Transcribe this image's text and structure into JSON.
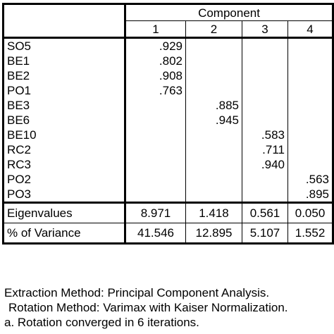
{
  "table": {
    "component_header": "Component",
    "component_numbers": [
      "1",
      "2",
      "3",
      "4"
    ],
    "rows": [
      {
        "label": "SO5",
        "values": [
          ".929",
          "",
          "",
          ""
        ]
      },
      {
        "label": "BE1",
        "values": [
          ".802",
          "",
          "",
          ""
        ]
      },
      {
        "label": "BE2",
        "values": [
          ".908",
          "",
          "",
          ""
        ]
      },
      {
        "label": "PO1",
        "values": [
          ".763",
          "",
          "",
          ""
        ]
      },
      {
        "label": "BE3",
        "values": [
          "",
          ".885",
          "",
          ""
        ]
      },
      {
        "label": "BE6",
        "values": [
          "",
          ".945",
          "",
          ""
        ]
      },
      {
        "label": "BE10",
        "values": [
          "",
          "",
          ".583",
          ""
        ]
      },
      {
        "label": "RC2",
        "values": [
          "",
          "",
          ".711",
          ""
        ]
      },
      {
        "label": "RC3",
        "values": [
          "",
          "",
          ".940",
          ""
        ]
      },
      {
        "label": "PO2",
        "values": [
          "",
          "",
          "",
          ".563"
        ]
      },
      {
        "label": "PO3",
        "values": [
          "",
          "",
          "",
          ".895"
        ]
      }
    ],
    "summary": [
      {
        "label": "Eigenvalues",
        "values": [
          "8.971",
          "1.418",
          "0.561",
          "0.050"
        ]
      },
      {
        "label": "% of Variance",
        "values": [
          "41.546",
          "12.895",
          "5.107",
          "1.552"
        ]
      }
    ]
  },
  "notes": [
    "Extraction Method: Principal Component Analysis.",
    "Rotation Method: Varimax with Kaiser Normalization.",
    "a. Rotation converged in 6 iterations."
  ]
}
